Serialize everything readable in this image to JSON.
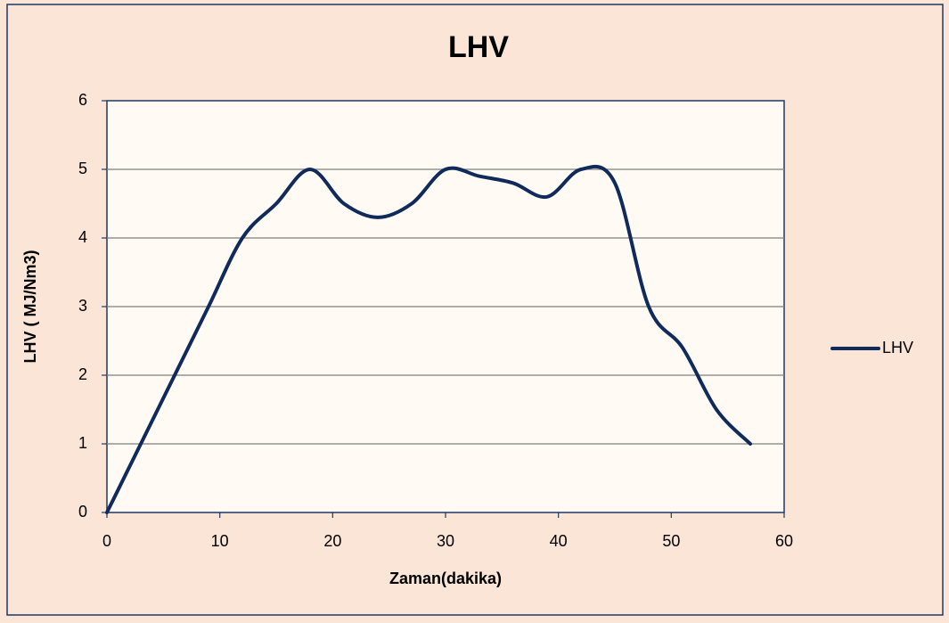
{
  "chart_data": {
    "type": "line",
    "title": "LHV",
    "x_label": "Zaman(dakika)",
    "y_label": "LHV ( MJ/Nm3)",
    "x": [
      0,
      3,
      6,
      9,
      12,
      15,
      18,
      21,
      24,
      27,
      30,
      33,
      36,
      39,
      42,
      45,
      48,
      51,
      54,
      57
    ],
    "series": [
      {
        "name": "LHV",
        "color": "#102a5c",
        "values": [
          0,
          1,
          2,
          3,
          4,
          4.5,
          5,
          4.5,
          4.3,
          4.5,
          5,
          4.9,
          4.8,
          4.6,
          5,
          4.8,
          3,
          2.4,
          1.5,
          1
        ]
      }
    ],
    "xlim": [
      0,
      60
    ],
    "xticks": [
      0,
      10,
      20,
      30,
      40,
      50,
      60
    ],
    "ylim": [
      0,
      6
    ],
    "yticks": [
      0,
      1,
      2,
      3,
      4,
      5,
      6
    ],
    "grid": true,
    "smooth": true,
    "legend": "right"
  }
}
